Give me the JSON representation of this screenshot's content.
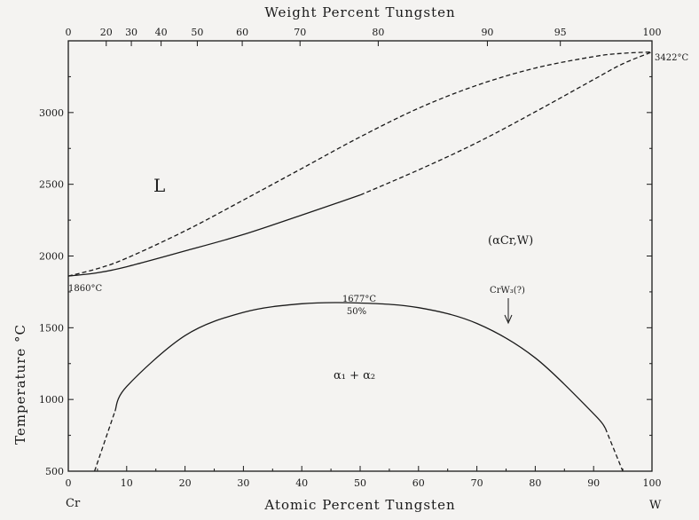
{
  "chart_data": {
    "type": "line",
    "title": "",
    "xlabel": "Atomic Percent Tungsten",
    "x2label": "Weight Percent Tungsten",
    "ylabel": "Temperature °C",
    "xlim": [
      0,
      100
    ],
    "ylim": [
      500,
      3500
    ],
    "grid": false,
    "x_ticks": [
      0,
      10,
      20,
      30,
      40,
      50,
      60,
      70,
      80,
      90,
      100
    ],
    "y_ticks": [
      500,
      1000,
      1500,
      2000,
      2500,
      3000
    ],
    "top_ticks": [
      {
        "label": "0",
        "at": 0
      },
      {
        "label": "20",
        "at": 6.5
      },
      {
        "label": "30",
        "at": 10.8
      },
      {
        "label": "40",
        "at": 15.9
      },
      {
        "label": "50",
        "at": 22.1
      },
      {
        "label": "60",
        "at": 29.8
      },
      {
        "label": "70",
        "at": 39.7
      },
      {
        "label": "80",
        "at": 53.1
      },
      {
        "label": "90",
        "at": 71.8
      },
      {
        "label": "95",
        "at": 84.3
      },
      {
        "label": "100",
        "at": 100
      }
    ],
    "series": [
      {
        "style": "dashed",
        "x": [
          0,
          5,
          10,
          20,
          30,
          40,
          50,
          60,
          70,
          80,
          90,
          95,
          100
        ],
        "y": [
          1860,
          1912,
          1985,
          2175,
          2390,
          2610,
          2830,
          3030,
          3190,
          3310,
          3390,
          3413,
          3422
        ]
      },
      {
        "style": "mixed",
        "solid_to": 50,
        "x": [
          0,
          5,
          10,
          20,
          30,
          40,
          50,
          60,
          70,
          80,
          90,
          95,
          100
        ],
        "y": [
          1860,
          1883,
          1925,
          2035,
          2150,
          2285,
          2425,
          2600,
          2790,
          3005,
          3230,
          3340,
          3422
        ]
      },
      {
        "style": "mixed",
        "solid_from": 8,
        "solid_to": 92,
        "x": [
          4.5,
          8,
          10,
          20,
          30,
          40,
          50,
          60,
          70,
          80,
          90,
          92,
          95
        ],
        "y": [
          500,
          918,
          1090,
          1445,
          1607,
          1667,
          1672,
          1640,
          1530,
          1290,
          900,
          800,
          500
        ]
      }
    ],
    "annotations": {
      "liquid": "L",
      "solid_solution": "(αCr,W)",
      "two_phase": "α₁ + α₂",
      "cr_melting": "1860°C",
      "w_melting": "3422°C",
      "critical_temp": "1677°C",
      "critical_comp": "50%",
      "compound": "CrW₃(?)",
      "left_element": "Cr",
      "right_element": "W"
    }
  }
}
